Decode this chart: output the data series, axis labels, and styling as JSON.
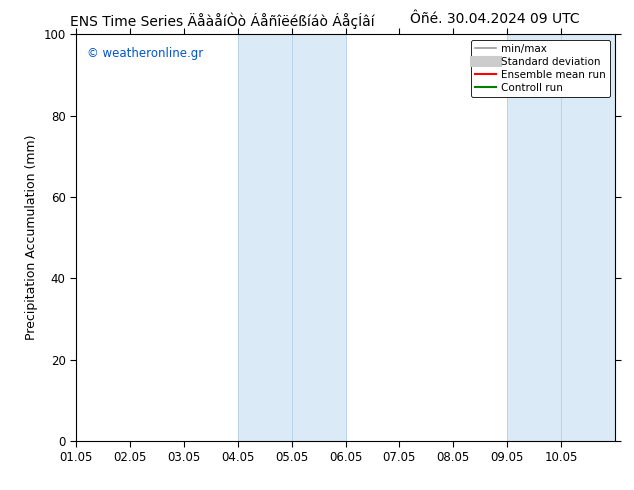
{
  "title_left": "ENS Time Series ÄåàåíÒò Áåñîëéßíáò ÁåçÍâí",
  "title_right": "Ôñé. 30.04.2024 09 UTC",
  "ylabel": "Precipitation Accumulation (mm)",
  "ylim": [
    0,
    100
  ],
  "xlim_start": 0,
  "xlim_end": 10,
  "xtick_labels": [
    "01.05",
    "02.05",
    "03.05",
    "04.05",
    "05.05",
    "06.05",
    "07.05",
    "08.05",
    "09.05",
    "10.05"
  ],
  "ytick_labels": [
    0,
    20,
    40,
    60,
    80,
    100
  ],
  "shaded_regions": [
    {
      "x_start": 3.0,
      "x_end": 4.0,
      "color": "#daeaf6"
    },
    {
      "x_start": 4.0,
      "x_end": 5.0,
      "color": "#daeaf6"
    },
    {
      "x_start": 8.0,
      "x_end": 9.0,
      "color": "#daeaf6"
    },
    {
      "x_start": 9.0,
      "x_end": 10.0,
      "color": "#daeaf6"
    }
  ],
  "shaded_border_color": "#b8d4e8",
  "watermark_text": "© weatheronline.gr",
  "watermark_color": "#0055cc",
  "legend_items": [
    {
      "label": "min/max",
      "color": "#999999",
      "lw": 1.2
    },
    {
      "label": "Standard deviation",
      "color": "#cccccc",
      "lw": 8
    },
    {
      "label": "Ensemble mean run",
      "color": "#ff0000",
      "lw": 1.5
    },
    {
      "label": "Controll run",
      "color": "#008000",
      "lw": 1.5
    }
  ],
  "bg_color": "#ffffff",
  "title_fontsize": 10,
  "axis_fontsize": 9,
  "tick_fontsize": 8.5
}
